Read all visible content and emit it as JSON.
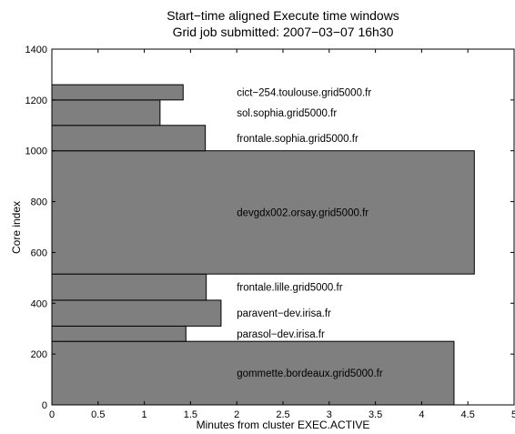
{
  "chart_data": {
    "type": "bar",
    "orientation": "horizontal",
    "title": "Start−time aligned Execute time windows",
    "subtitle": "Grid job submitted: 2007−03−07 16h30",
    "xlabel": "Minutes from cluster EXEC.ACTIVE",
    "ylabel": "Core index",
    "xlim": [
      0,
      5
    ],
    "ylim": [
      0,
      1400
    ],
    "xticks": [
      "0",
      "0.5",
      "1",
      "1.5",
      "2",
      "2.5",
      "3",
      "3.5",
      "4",
      "4.5",
      "5"
    ],
    "yticks": [
      "0",
      "200",
      "400",
      "600",
      "800",
      "1000",
      "1200",
      "1400"
    ],
    "grid": false,
    "bar_color": "#7f7f7f",
    "bars": [
      {
        "label": "gommette.bordeaux.grid5000.fr",
        "core_start": 0,
        "core_end": 250,
        "duration": 4.35
      },
      {
        "label": "parasol−dev.irisa.fr",
        "core_start": 250,
        "core_end": 310,
        "duration": 1.45
      },
      {
        "label": "paravent−dev.irisa.fr",
        "core_start": 310,
        "core_end": 412,
        "duration": 1.83
      },
      {
        "label": "frontale.lille.grid5000.fr",
        "core_start": 412,
        "core_end": 515,
        "duration": 1.67
      },
      {
        "label": "devgdx002.orsay.grid5000.fr",
        "core_start": 515,
        "core_end": 1000,
        "duration": 4.57
      },
      {
        "label": "frontale.sophia.grid5000.fr",
        "core_start": 1000,
        "core_end": 1100,
        "duration": 1.66
      },
      {
        "label": "sol.sophia.grid5000.fr",
        "core_start": 1100,
        "core_end": 1200,
        "duration": 1.17
      },
      {
        "label": "cict−254.toulouse.grid5000.fr",
        "core_start": 1200,
        "core_end": 1260,
        "duration": 1.42
      }
    ]
  }
}
